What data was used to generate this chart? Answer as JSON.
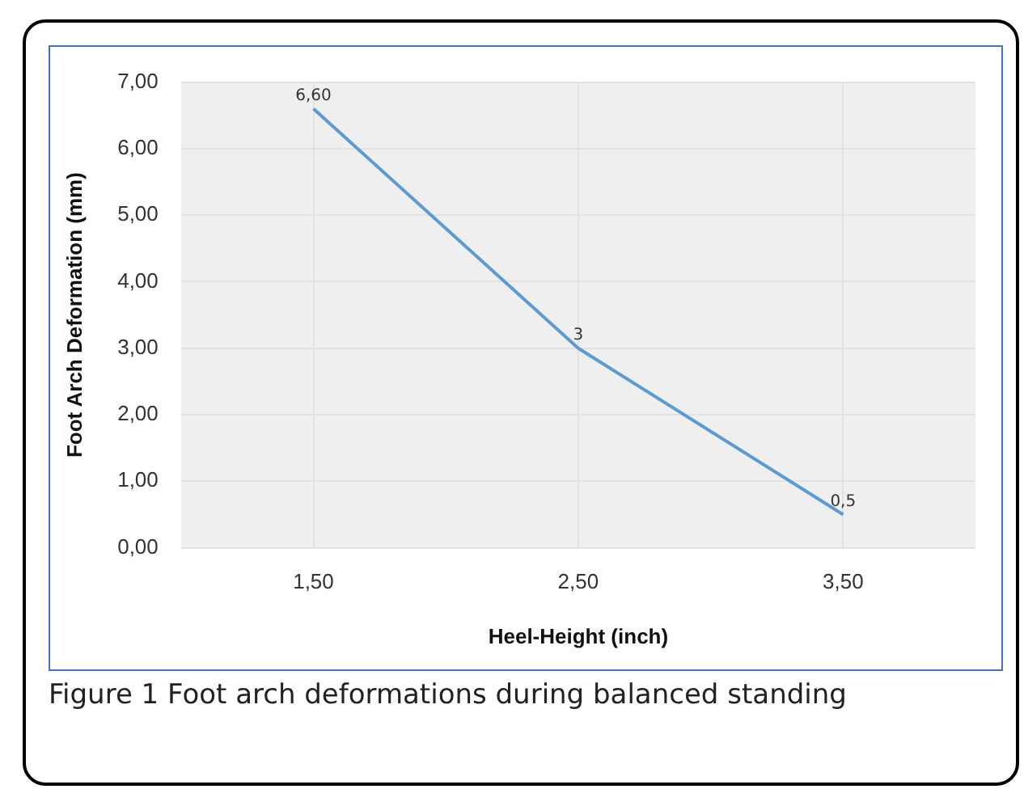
{
  "chart_data": {
    "type": "line",
    "xlabel": "Heel-Height (inch)",
    "ylabel": "Foot Arch Deformation (mm)",
    "categories": [
      "1,50",
      "2,50",
      "3,50"
    ],
    "series": [
      {
        "color": "#5b9bd5",
        "values": [
          6.6,
          3,
          0.5
        ],
        "value_labels": [
          "6,60",
          "3",
          "0,5"
        ]
      }
    ],
    "ylim": [
      0,
      7
    ],
    "yticks": [
      {
        "value": 0,
        "label": "0,00"
      },
      {
        "value": 1,
        "label": "1,00"
      },
      {
        "value": 2,
        "label": "2,00"
      },
      {
        "value": 3,
        "label": "3,00"
      },
      {
        "value": 4,
        "label": "4,00"
      },
      {
        "value": 5,
        "label": "5,00"
      },
      {
        "value": 6,
        "label": "6,00"
      },
      {
        "value": 7,
        "label": "7,00"
      }
    ],
    "grid": true,
    "marker": "none",
    "line_style": "solid",
    "legend": false,
    "annotations": [
      "Figure 1 Foot arch deformations during balanced standing"
    ]
  }
}
